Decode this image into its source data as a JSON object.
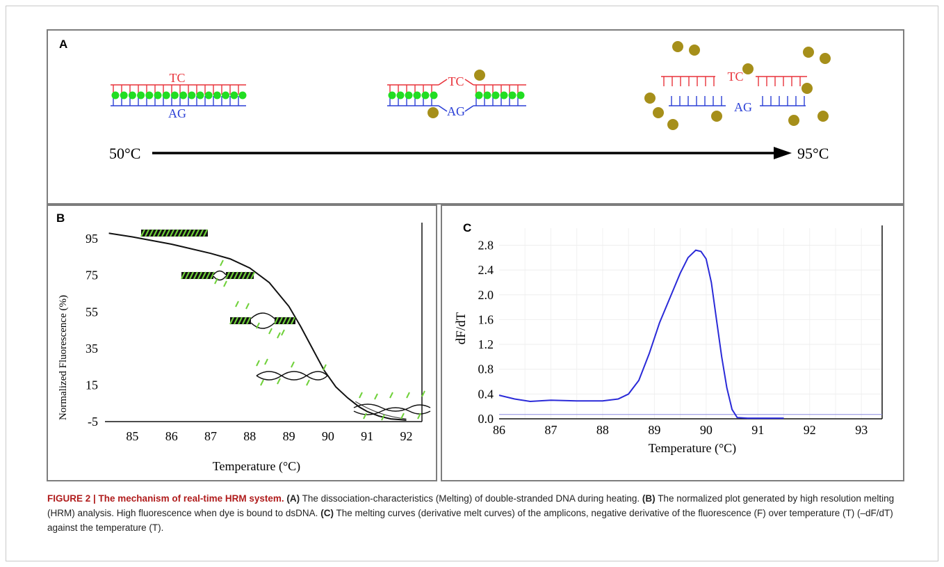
{
  "panel_a": {
    "label": "A",
    "top_bases": "TC",
    "bottom_bases": "AG",
    "temp_start": "50°C",
    "temp_end": "95°C",
    "colors": {
      "top_strand": "#e8323a",
      "bottom_strand": "#2a3fd6",
      "bound_dye": "#22dd22",
      "free_dye": "#a68f1a"
    }
  },
  "panel_b": {
    "label": "B",
    "chart_data": {
      "type": "line",
      "xlabel": "Temperature (°C)",
      "ylabel": "Normalized Fluorescence (%)",
      "xlim": [
        84.3,
        92.4
      ],
      "ylim": [
        -5,
        100
      ],
      "x_ticks": [
        85,
        86,
        87,
        88,
        89,
        90,
        91,
        92
      ],
      "y_ticks": [
        95,
        75,
        55,
        35,
        15,
        -5
      ],
      "x": [
        84.4,
        85,
        86,
        87,
        87.5,
        88,
        88.5,
        89,
        89.3,
        89.6,
        89.9,
        90.2,
        90.5,
        90.8,
        91,
        91.3,
        91.6,
        92
      ],
      "y": [
        98,
        96,
        92,
        87,
        84,
        79,
        71,
        58,
        47,
        35,
        23,
        14,
        8,
        3,
        0.5,
        -2,
        -3.5,
        -4.2
      ],
      "series": [
        {
          "name": "",
          "color": "#111111"
        }
      ],
      "grid": false
    }
  },
  "panel_c": {
    "label": "C",
    "chart_data": {
      "type": "line",
      "xlabel": "Temperature (°C)",
      "ylabel": "dF/dT",
      "xlim": [
        86,
        93.4
      ],
      "ylim": [
        0,
        2.85
      ],
      "x_ticks": [
        86,
        87,
        88,
        89,
        90,
        91,
        92,
        93
      ],
      "y_ticks": [
        "0.0",
        "0.4",
        "0.8",
        "1.2",
        "1.6",
        "2.0",
        "2.4",
        "2.8"
      ],
      "x": [
        86,
        86.3,
        86.6,
        87,
        87.5,
        88,
        88.3,
        88.5,
        88.7,
        88.9,
        89.1,
        89.3,
        89.5,
        89.65,
        89.8,
        89.9,
        90,
        90.1,
        90.2,
        90.3,
        90.4,
        90.5,
        90.6,
        90.8,
        91,
        91.5
      ],
      "y": [
        0.38,
        0.32,
        0.28,
        0.3,
        0.29,
        0.29,
        0.32,
        0.4,
        0.62,
        1.05,
        1.55,
        1.95,
        2.35,
        2.6,
        2.72,
        2.7,
        2.58,
        2.2,
        1.6,
        1.0,
        0.5,
        0.15,
        0.02,
        0.01,
        0.01,
        0.01
      ],
      "baseline": 0.07,
      "series": [
        {
          "name": "",
          "color": "#2a2ad8"
        }
      ],
      "grid": true
    }
  },
  "caption": {
    "fig_no": "FIGURE 2 | The mechanism of real-time HRM system.",
    "a_tag": "(A)",
    "a_text": "The dissociation-characteristics (Melting) of double-stranded DNA during heating.",
    "b_tag": "(B)",
    "b_text": "The normalized plot generated by high resolution melting (HRM) analysis. High fluorescence when dye is bound to dsDNA.",
    "c_tag": "(C)",
    "c_text": "The melting curves (derivative melt curves) of the amplicons, negative derivative of the fluorescence (F) over temperature (T) (–dF/dT) against the temperature (T)."
  }
}
